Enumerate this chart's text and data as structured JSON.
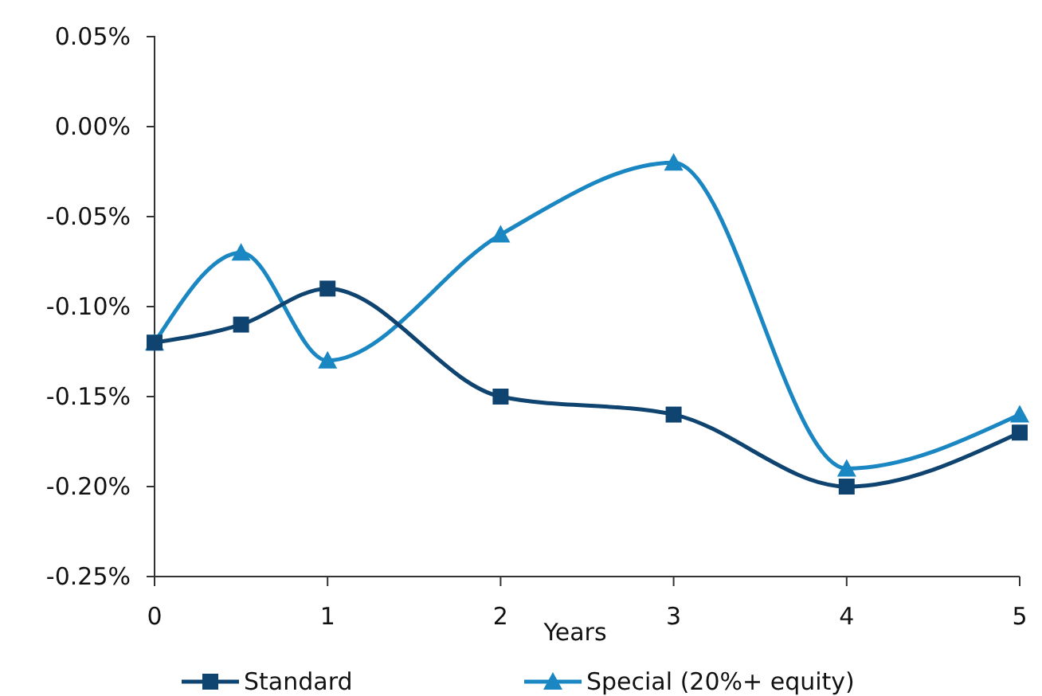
{
  "chart_data": {
    "type": "line",
    "xlabel": "Years",
    "x": [
      0,
      0.5,
      1,
      2,
      3,
      4,
      5
    ],
    "series": [
      {
        "name": "Standard",
        "color": "#0f4470",
        "values": [
          -0.12,
          -0.11,
          -0.09,
          -0.15,
          -0.16,
          -0.2,
          -0.17
        ],
        "marker": "square"
      },
      {
        "name": "Special (20%+ equity)",
        "color": "#1a87c2",
        "values": [
          -0.12,
          -0.07,
          -0.13,
          -0.06,
          -0.02,
          -0.19,
          -0.16
        ],
        "marker": "triangle"
      }
    ],
    "xlim": [
      0,
      5
    ],
    "xticks": [
      0,
      1,
      2,
      3,
      4,
      5
    ],
    "ylim": [
      -0.25,
      0.05
    ],
    "yticks": [
      {
        "value": 0.05,
        "label": "0.05%"
      },
      {
        "value": 0,
        "label": "0.00%"
      },
      {
        "value": -0.05,
        "label": "-0.05%"
      },
      {
        "value": -0.1,
        "label": "-0.10%"
      },
      {
        "value": -0.15,
        "label": "-0.15%"
      },
      {
        "value": -0.2,
        "label": "-0.20%"
      },
      {
        "value": -0.25,
        "label": "-0.25%"
      }
    ],
    "grid": false,
    "legend": "bottom",
    "line_style": "solid"
  }
}
